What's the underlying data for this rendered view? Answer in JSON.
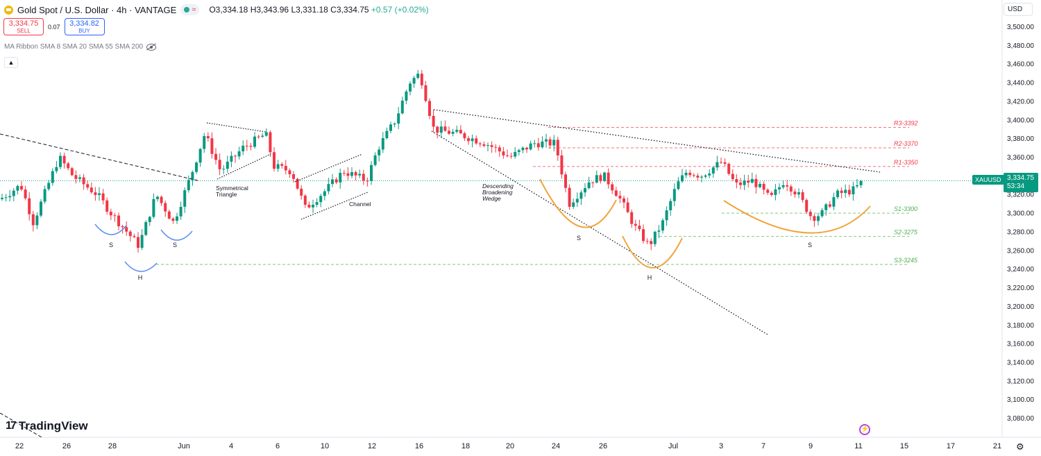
{
  "header": {
    "title": "Gold Spot / U.S. Dollar · 4h · VANTAGE",
    "ohlc_open": "O3,334.18",
    "ohlc_high": "H3,343.96",
    "ohlc_low": "L3,331.18",
    "ohlc_close": "C3,334.75",
    "ohlc_change": "+0.57 (+0.02%)"
  },
  "trade": {
    "sell_price": "3,334.75",
    "sell_label": "SELL",
    "spread": "0.07",
    "buy_price": "3,334.82",
    "buy_label": "BUY"
  },
  "indicator": {
    "label": "MA Ribbon SMA 8 SMA 20 SMA 55 SMA 200"
  },
  "currency": {
    "label": "USD"
  },
  "price_tag": {
    "symbol": "XAUUSD",
    "price": "3,334.75",
    "countdown": "53:34"
  },
  "brand": {
    "name": "TradingView"
  },
  "colors": {
    "up": "#089981",
    "down": "#f23645",
    "resistance": "#f23645",
    "support": "#4caf50",
    "pattern_inner": "#5b8def",
    "pattern_outer": "#f0a53b"
  },
  "chart_data": {
    "type": "candlestick",
    "y_ticks": [
      "3,080.00",
      "3,100.00",
      "3,120.00",
      "3,140.00",
      "3,160.00",
      "3,180.00",
      "3,200.00",
      "3,220.00",
      "3,240.00",
      "3,260.00",
      "3,280.00",
      "3,300.00",
      "3,320.00",
      "3,340.00",
      "3,360.00",
      "3,380.00",
      "3,400.00",
      "3,420.00",
      "3,440.00",
      "3,460.00",
      "3,480.00",
      "3,500.00"
    ],
    "ylim": [
      3070,
      3510
    ],
    "x_ticks": [
      "22",
      "26",
      "28",
      "Jun",
      "4",
      "6",
      "10",
      "12",
      "16",
      "18",
      "20",
      "24",
      "26",
      "Jul",
      "3",
      "7",
      "9",
      "11",
      "15",
      "17",
      "21"
    ],
    "levels": [
      {
        "label": "R3-3392",
        "value": 3392,
        "kind": "resistance"
      },
      {
        "label": "R2-3370",
        "value": 3370,
        "kind": "resistance"
      },
      {
        "label": "R1-3350",
        "value": 3350,
        "kind": "resistance"
      },
      {
        "label": "S1-3300",
        "value": 3300,
        "kind": "support"
      },
      {
        "label": "S2-3275",
        "value": 3275,
        "kind": "support"
      },
      {
        "label": "S3-3245",
        "value": 3245,
        "kind": "support"
      }
    ],
    "annotations": [
      "Symmetrical Triangle",
      "Channel",
      "Descending Broadening Wedge",
      "S",
      "H",
      "S",
      "S",
      "H",
      "S"
    ],
    "last_price": 3334.75
  }
}
